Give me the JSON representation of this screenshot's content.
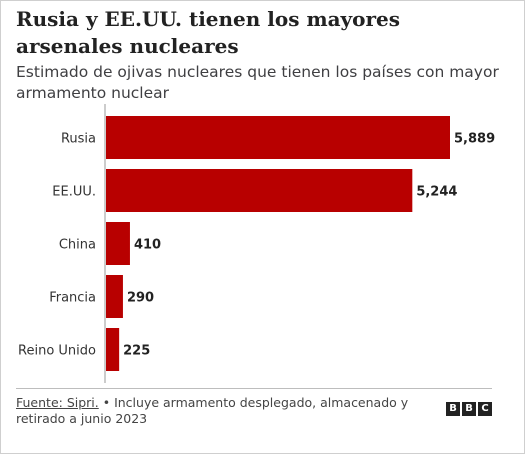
{
  "chart_data": {
    "type": "bar",
    "orientation": "horizontal",
    "title": "Rusia y EE.UU. tienen los mayores arsenales nucleares",
    "subtitle": "Estimado de ojivas nucleares que tienen los países con mayor armamento nuclear",
    "categories": [
      "Rusia",
      "EE.UU.",
      "China",
      "Francia",
      "Reino Unido"
    ],
    "values": [
      5889,
      5244,
      410,
      290,
      225
    ],
    "value_labels": [
      "5,889",
      "5,244",
      "410",
      "290",
      "225"
    ],
    "xlim": [
      0,
      5889
    ],
    "grid": false,
    "legend": "none",
    "bar_color": "#b80000"
  },
  "footer": {
    "source_label": "Fuente: Sipri.",
    "note": " • Incluye armamento desplegado, almacenado y retirado a junio 2023"
  },
  "logo": {
    "letters": [
      "B",
      "B",
      "C"
    ]
  }
}
